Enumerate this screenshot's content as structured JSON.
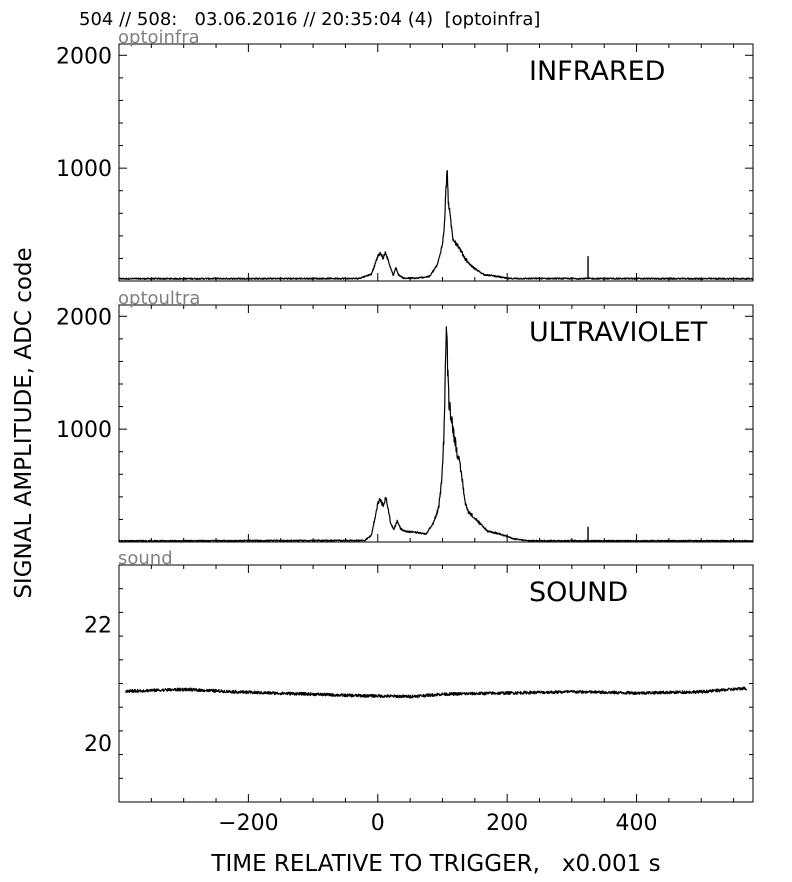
{
  "figure": {
    "suptitle": "504 // 508:   03.06.2016 // 20:35:04 (4)  [optoinfra]",
    "ylabel": "SIGNAL AMPLITUDE,  ADC code",
    "xlabel": "TIME RELATIVE TO TRIGGER,   x0.001 s"
  },
  "chart_data": [
    {
      "type": "line",
      "channel": "optoinfra",
      "title": "INFRARED",
      "xlim": [
        -400,
        580
      ],
      "ylim": [
        0,
        2100
      ],
      "xticks": [
        -200,
        0,
        200,
        400
      ],
      "yticks": [
        1000,
        2000
      ],
      "line_color": "#000000",
      "series": [
        {
          "baseline": 20,
          "noise": 6,
          "spikes": [
            {
              "x": 325,
              "y": 220
            }
          ],
          "points": [
            [
              -400,
              20
            ],
            [
              -30,
              22
            ],
            [
              -10,
              60
            ],
            [
              -4,
              150
            ],
            [
              0,
              220
            ],
            [
              4,
              245
            ],
            [
              8,
              205
            ],
            [
              12,
              250
            ],
            [
              16,
              190
            ],
            [
              20,
              110
            ],
            [
              24,
              50
            ],
            [
              28,
              120
            ],
            [
              32,
              55
            ],
            [
              40,
              25
            ],
            [
              60,
              25
            ],
            [
              80,
              40
            ],
            [
              88,
              110
            ],
            [
              92,
              140
            ],
            [
              96,
              230
            ],
            [
              100,
              330
            ],
            [
              103,
              500
            ],
            [
              105,
              760
            ],
            [
              107,
              990
            ],
            [
              109,
              720
            ],
            [
              112,
              560
            ],
            [
              116,
              380
            ],
            [
              122,
              330
            ],
            [
              128,
              270
            ],
            [
              135,
              200
            ],
            [
              145,
              130
            ],
            [
              155,
              90
            ],
            [
              165,
              55
            ],
            [
              180,
              45
            ],
            [
              190,
              35
            ],
            [
              200,
              22
            ],
            [
              580,
              20
            ]
          ]
        }
      ]
    },
    {
      "type": "line",
      "channel": "optoultra",
      "title": "ULTRAVIOLET",
      "xlim": [
        -400,
        580
      ],
      "ylim": [
        0,
        2100
      ],
      "xticks": [
        -200,
        0,
        200,
        400
      ],
      "yticks": [
        1000,
        2000
      ],
      "line_color": "#000000",
      "series": [
        {
          "baseline": 10,
          "noise": 5,
          "spikes": [
            {
              "x": 325,
              "y": 135
            }
          ],
          "points": [
            [
              -400,
              10
            ],
            [
              -20,
              14
            ],
            [
              -10,
              60
            ],
            [
              -4,
              220
            ],
            [
              0,
              350
            ],
            [
              4,
              385
            ],
            [
              8,
              320
            ],
            [
              12,
              400
            ],
            [
              16,
              300
            ],
            [
              20,
              160
            ],
            [
              25,
              110
            ],
            [
              30,
              190
            ],
            [
              35,
              120
            ],
            [
              45,
              90
            ],
            [
              60,
              85
            ],
            [
              75,
              70
            ],
            [
              85,
              160
            ],
            [
              90,
              230
            ],
            [
              94,
              300
            ],
            [
              98,
              500
            ],
            [
              102,
              900
            ],
            [
              104,
              1400
            ],
            [
              106,
              1930
            ],
            [
              108,
              1550
            ],
            [
              110,
              1250
            ],
            [
              114,
              1100
            ],
            [
              118,
              940
            ],
            [
              124,
              760
            ],
            [
              130,
              580
            ],
            [
              135,
              350
            ],
            [
              140,
              270
            ],
            [
              150,
              210
            ],
            [
              160,
              150
            ],
            [
              170,
              95
            ],
            [
              190,
              70
            ],
            [
              210,
              28
            ],
            [
              230,
              12
            ],
            [
              580,
              10
            ]
          ]
        }
      ]
    },
    {
      "type": "line",
      "channel": "sound",
      "title": "SOUND",
      "xlim": [
        -400,
        580
      ],
      "ylim": [
        19,
        23
      ],
      "xticks": [
        -200,
        0,
        200,
        400
      ],
      "yticks": [
        20,
        22
      ],
      "line_color": "#000000",
      "series": [
        {
          "baseline": 20.85,
          "noise": 0.025,
          "spikes": [],
          "points": [
            [
              -390,
              20.87
            ],
            [
              -300,
              20.9
            ],
            [
              -200,
              20.85
            ],
            [
              -100,
              20.82
            ],
            [
              -50,
              20.8
            ],
            [
              0,
              20.79
            ],
            [
              50,
              20.78
            ],
            [
              100,
              20.82
            ],
            [
              200,
              20.84
            ],
            [
              300,
              20.86
            ],
            [
              400,
              20.84
            ],
            [
              500,
              20.86
            ],
            [
              570,
              20.92
            ]
          ]
        }
      ]
    }
  ]
}
